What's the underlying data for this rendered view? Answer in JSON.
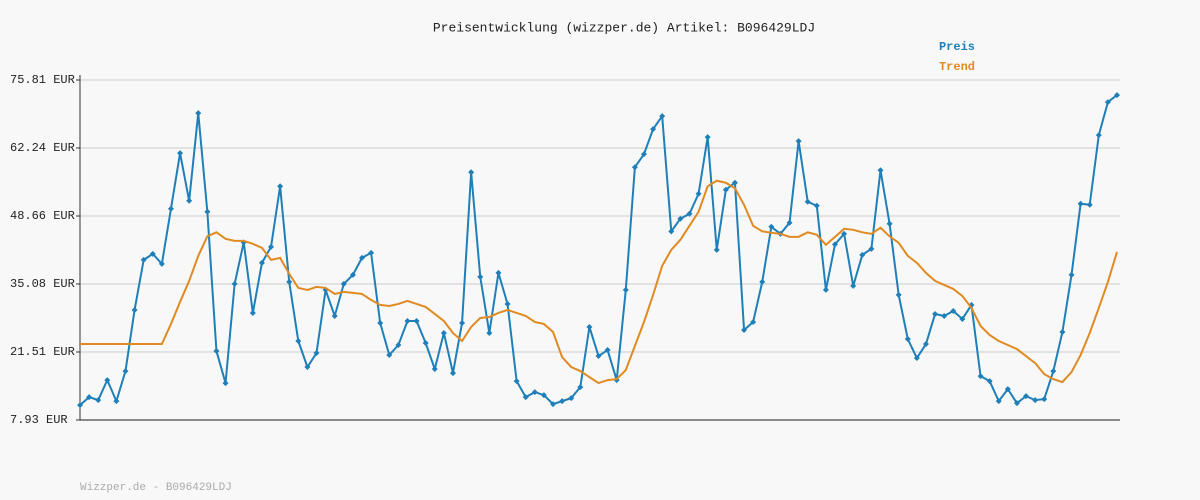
{
  "chart_data": {
    "type": "line",
    "title": "Preisentwicklung (wizzper.de) Artikel: B096429LDJ",
    "footer": "Wizzper.de - B096429LDJ",
    "ylim": [
      7.93,
      75.81
    ],
    "yticks": [
      {
        "value": 7.93,
        "label": "7.93 EUR"
      },
      {
        "value": 21.51,
        "label": "21.51 EUR"
      },
      {
        "value": 35.08,
        "label": "35.08 EUR"
      },
      {
        "value": 48.66,
        "label": "48.66 EUR"
      },
      {
        "value": 62.24,
        "label": "62.24 EUR"
      },
      {
        "value": 75.81,
        "label": "75.81 EUR"
      }
    ],
    "grid": true,
    "series": [
      {
        "name": "Preis",
        "color": "#1f7fb8",
        "markers": true,
        "values": [
          10.9,
          12.5,
          11.9,
          15.9,
          11.7,
          17.7,
          29.9,
          39.9,
          41.1,
          39.1,
          50.1,
          61.2,
          51.7,
          69.2,
          49.5,
          21.7,
          15.3,
          35.1,
          43.4,
          29.3,
          39.3,
          42.5,
          54.6,
          35.5,
          23.7,
          18.5,
          21.3,
          33.9,
          28.7,
          35.1,
          36.9,
          40.3,
          41.3,
          27.3,
          20.9,
          22.9,
          27.7,
          27.7,
          23.3,
          18.1,
          25.3,
          17.3,
          27.3,
          57.4,
          36.5,
          25.3,
          37.3,
          31.1,
          15.7,
          12.5,
          13.5,
          12.9,
          11.1,
          11.7,
          12.3,
          14.5,
          26.5,
          20.7,
          21.9,
          15.9,
          33.9,
          58.4,
          61.0,
          66.0,
          68.6,
          45.6,
          48.1,
          49.1,
          53.1,
          64.4,
          41.9,
          53.9,
          55.3,
          25.9,
          27.5,
          35.5,
          46.5,
          45.1,
          47.3,
          63.6,
          51.5,
          50.7,
          33.9,
          43.0,
          45.1,
          34.7,
          40.9,
          42.1,
          57.8,
          47.1,
          32.9,
          24.1,
          20.3,
          23.1,
          29.1,
          28.7,
          29.7,
          28.1,
          30.9,
          16.7,
          15.7,
          11.7,
          14.1,
          11.3,
          12.7,
          11.9,
          12.1,
          17.7,
          25.5,
          36.9,
          51.1,
          50.9,
          64.8,
          71.4,
          72.8
        ]
      },
      {
        "name": "Trend",
        "color": "#e08a22",
        "markers": false,
        "values": [
          23.1,
          23.1,
          23.1,
          23.1,
          23.1,
          23.1,
          23.1,
          23.1,
          23.1,
          23.1,
          27.1,
          31.5,
          35.7,
          40.7,
          44.6,
          45.4,
          44.1,
          43.7,
          43.7,
          43.1,
          42.3,
          39.9,
          40.3,
          37.1,
          34.3,
          33.9,
          34.5,
          34.3,
          33.1,
          33.5,
          33.3,
          33.1,
          31.9,
          30.9,
          30.7,
          31.1,
          31.7,
          31.1,
          30.5,
          29.1,
          27.7,
          25.3,
          23.7,
          26.5,
          28.3,
          28.5,
          29.3,
          29.9,
          29.3,
          28.7,
          27.5,
          27.1,
          25.5,
          20.5,
          18.5,
          17.7,
          16.5,
          15.3,
          15.9,
          16.1,
          17.9,
          22.7,
          27.5,
          32.9,
          38.7,
          41.9,
          43.9,
          46.7,
          49.5,
          54.6,
          55.7,
          55.3,
          54.2,
          50.9,
          46.7,
          45.6,
          45.3,
          45.1,
          44.5,
          44.5,
          45.4,
          44.9,
          42.9,
          44.5,
          46.1,
          45.9,
          45.4,
          45.1,
          46.3,
          44.6,
          43.3,
          40.7,
          39.3,
          37.3,
          35.7,
          34.9,
          34.1,
          32.7,
          30.3,
          26.7,
          24.9,
          23.7,
          22.9,
          22.1,
          20.7,
          19.3,
          17.1,
          16.1,
          15.5,
          17.5,
          20.9,
          25.3,
          30.3,
          35.5,
          41.5
        ]
      }
    ]
  }
}
